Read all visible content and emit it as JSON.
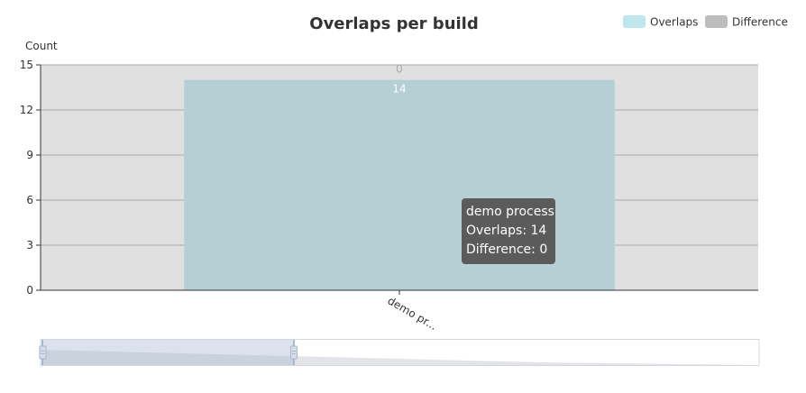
{
  "colors": {
    "overlaps_legend": "#bfe6ea",
    "overlaps_bar": "#b5cfd4",
    "difference": "#bdbdbd",
    "plot_background": "#e0e0e0",
    "grid": "#aaaaaa",
    "axis": "#333333",
    "overlaps_label": "#ffffff",
    "difference_label": "#aaaaaa",
    "tooltip_background": "#5b5b5b"
  },
  "tooltip": {
    "category": "demo process",
    "overlaps_line": "Overlaps: 14",
    "difference_line": "Difference: 0"
  },
  "datazoom": {
    "start_fraction": 0.0,
    "end_fraction": 0.35
  },
  "chart_data": {
    "type": "bar",
    "title": "Overlaps per build",
    "xlabel": "",
    "ylabel": "Count",
    "categories": [
      "demo process"
    ],
    "category_tick_labels": [
      "demo pr..."
    ],
    "series": [
      {
        "name": "Overlaps",
        "values": [
          14
        ],
        "data_labels": [
          "14"
        ]
      },
      {
        "name": "Difference",
        "values": [
          0
        ],
        "data_labels": [
          "0"
        ]
      }
    ],
    "stacked": true,
    "ylim": [
      0,
      15
    ],
    "yticks": [
      0,
      3,
      6,
      9,
      12,
      15
    ],
    "grid": true,
    "legend_position": "top-right"
  }
}
